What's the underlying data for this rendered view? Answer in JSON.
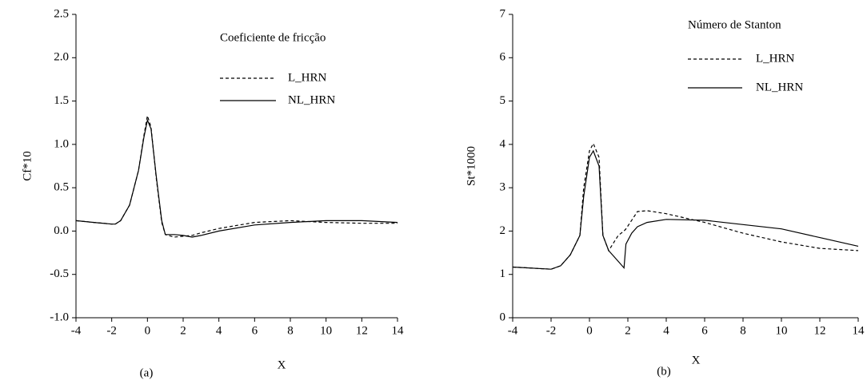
{
  "chart_data": [
    {
      "type": "line",
      "caption": "(a)",
      "x_label": "X",
      "y_label": "Cf*10",
      "legend_title": "Coeficiente de fricção",
      "x": [
        -4,
        -3,
        -2,
        -1.8,
        -1.5,
        -1,
        -0.5,
        -0.2,
        0,
        0.2,
        0.5,
        0.8,
        1,
        1.5,
        2,
        2.5,
        3,
        4,
        6,
        8,
        10,
        12,
        14
      ],
      "series": [
        {
          "name": "L_HRN",
          "color": "#000000",
          "dash": "dashed",
          "values": [
            0.12,
            0.1,
            0.08,
            0.08,
            0.12,
            0.3,
            0.7,
            1.1,
            1.33,
            1.2,
            0.6,
            0.1,
            -0.04,
            -0.07,
            -0.06,
            -0.05,
            -0.02,
            0.03,
            0.1,
            0.12,
            0.1,
            0.09,
            0.09
          ]
        },
        {
          "name": "NL_HRN",
          "color": "#000000",
          "dash": "solid",
          "values": [
            0.12,
            0.1,
            0.08,
            0.08,
            0.12,
            0.3,
            0.7,
            1.08,
            1.28,
            1.18,
            0.62,
            0.12,
            -0.04,
            -0.04,
            -0.05,
            -0.07,
            -0.05,
            0,
            0.07,
            0.1,
            0.12,
            0.12,
            0.1
          ]
        }
      ],
      "xlim": [
        -4,
        14
      ],
      "xticks": [
        -4,
        -2,
        0,
        2,
        4,
        6,
        8,
        10,
        12,
        14
      ],
      "ylim": [
        -1,
        2.5
      ],
      "yticks": [
        {
          "value": -1,
          "label": "-1.0"
        },
        -0.5,
        {
          "value": 0,
          "label": "0.0"
        },
        0.5,
        {
          "value": 1,
          "label": "1.0"
        },
        1.5,
        {
          "value": 2,
          "label": "2.0"
        },
        2.5
      ]
    },
    {
      "type": "line",
      "caption": "(b)",
      "x_label": "X",
      "y_label": "St*1000",
      "legend_title": "Número de Stanton",
      "x": [
        -4,
        -2,
        -1.5,
        -1,
        -0.5,
        -0.3,
        0,
        0.2,
        0.5,
        0.7,
        1,
        1.5,
        1.8,
        1.9,
        2.2,
        2.5,
        3,
        4,
        6,
        8,
        10,
        12,
        14
      ],
      "series": [
        {
          "name": "L_HRN",
          "color": "#000000",
          "dash": "dashed",
          "values": [
            1.17,
            1.12,
            1.2,
            1.45,
            1.9,
            3.0,
            3.85,
            4.02,
            3.7,
            1.9,
            1.55,
            1.9,
            2.0,
            2.05,
            2.25,
            2.45,
            2.47,
            2.4,
            2.2,
            1.95,
            1.75,
            1.6,
            1.55
          ]
        },
        {
          "name": "NL_HRN",
          "color": "#000000",
          "dash": "solid",
          "values": [
            1.17,
            1.12,
            1.2,
            1.45,
            1.9,
            2.8,
            3.7,
            3.85,
            3.5,
            1.9,
            1.55,
            1.3,
            1.15,
            1.7,
            1.95,
            2.1,
            2.2,
            2.27,
            2.25,
            2.15,
            2.05,
            1.85,
            1.65
          ]
        }
      ],
      "xlim": [
        -4,
        14
      ],
      "xticks": [
        -4,
        -2,
        0,
        2,
        4,
        6,
        8,
        10,
        12,
        14
      ],
      "ylim": [
        0,
        7
      ],
      "yticks": [
        0,
        1,
        2,
        3,
        4,
        5,
        6,
        7
      ]
    }
  ]
}
